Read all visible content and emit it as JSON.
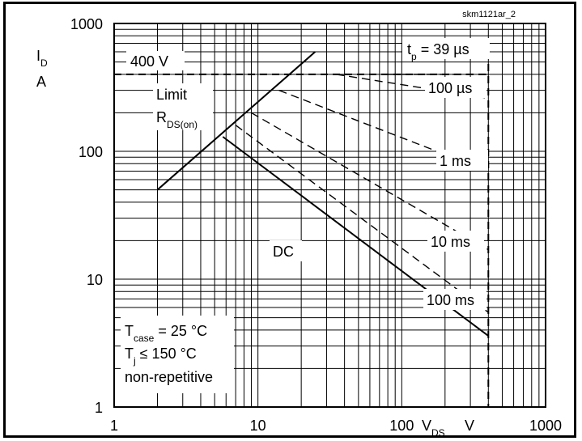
{
  "chart_data": {
    "type": "line",
    "code": "skm1121ar_2",
    "xscale": "log",
    "yscale": "log",
    "xlim": [
      1,
      1000
    ],
    "ylim": [
      1,
      1000
    ],
    "grid": true,
    "x_tick_labels": [
      "1",
      "10",
      "100",
      "1000"
    ],
    "y_tick_labels": [
      "1",
      "10",
      "100",
      "1000"
    ],
    "xlabel": {
      "main": "V",
      "sub": "DS",
      "unit": "V"
    },
    "ylabel": {
      "main": "I",
      "sub": "D",
      "unit": "A"
    },
    "voltage_limit": {
      "label": "400 V",
      "x": 400
    },
    "current_limit": {
      "y": 400
    },
    "rds_label": {
      "line1": "Limit",
      "line2_main": "R",
      "line2_sub": "DS(on)"
    },
    "conditions": {
      "tcase_main": "T",
      "tcase_sub": "case",
      "tcase_rest": " = 25 °C",
      "tj_main": "T",
      "tj_sub": "j",
      "tj_rest": " ≤ 150 °C",
      "note": "non-repetitive"
    },
    "series": [
      {
        "name": "R_DS(on) limit",
        "style": "solid",
        "points": [
          [
            2,
            50
          ],
          [
            25,
            600
          ]
        ]
      },
      {
        "name": "DC",
        "label": "DC",
        "style": "solid",
        "points": [
          [
            5.7,
            130
          ],
          [
            400,
            3.6
          ]
        ]
      },
      {
        "name": "100 ms",
        "label": "100 ms",
        "style": "dashed",
        "points": [
          [
            7,
            160
          ],
          [
            400,
            5.5
          ]
        ]
      },
      {
        "name": "10 ms",
        "label": "10 ms",
        "style": "dashed",
        "points": [
          [
            9,
            200
          ],
          [
            400,
            17
          ]
        ]
      },
      {
        "name": "1 ms",
        "label": "1 ms",
        "style": "dashed",
        "points": [
          [
            14,
            300
          ],
          [
            400,
            70
          ]
        ]
      },
      {
        "name": "100 µs",
        "label": "100 µs",
        "style": "dashed",
        "points": [
          [
            35,
            400
          ],
          [
            400,
            260
          ]
        ]
      },
      {
        "name": "t_p = 39 µs",
        "label_main": "t",
        "label_sub": "p",
        "label_rest": " = 39 µs",
        "style": "dashed",
        "points": [
          [
            80,
            400
          ],
          [
            400,
            400
          ]
        ]
      }
    ]
  }
}
